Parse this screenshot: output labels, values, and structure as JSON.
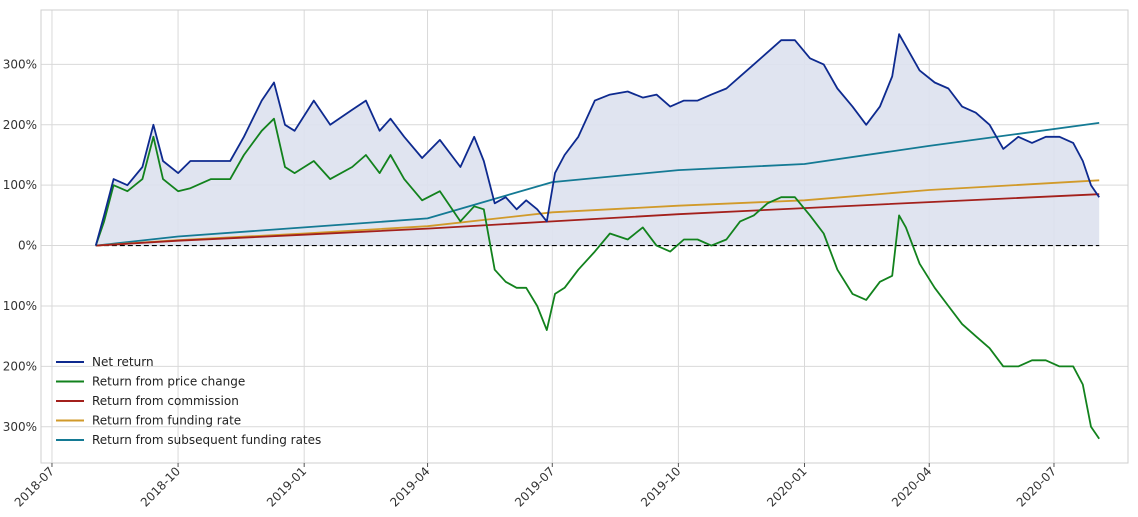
{
  "chart_data": {
    "type": "line",
    "title": "",
    "xlabel": "",
    "ylabel": "",
    "x_ticks": [
      "2018-07",
      "2018-10",
      "2019-01",
      "2019-04",
      "2019-07",
      "2019-10",
      "2020-01",
      "2020-04",
      "2020-07"
    ],
    "y_ticks": [
      "300%",
      "200%",
      "100%",
      "0%",
      "100%",
      "200%",
      "300%"
    ],
    "y_tick_values": [
      300,
      200,
      100,
      0,
      -100,
      -200,
      -300
    ],
    "xlim": [
      "2018-06-23",
      "2020-08-24"
    ],
    "ylim": [
      -360,
      390
    ],
    "grid": true,
    "legend_position": "lower-left",
    "zero_line": {
      "value": 0,
      "style": "dashed",
      "color": "#000000"
    },
    "fill_between": {
      "series": "Net return",
      "color": "#dde1ee"
    },
    "series": [
      {
        "name": "Net return",
        "color": "#0e2a8f",
        "x": [
          "2018-08-02",
          "2018-08-08",
          "2018-08-15",
          "2018-08-25",
          "2018-09-05",
          "2018-09-13",
          "2018-09-20",
          "2018-10-01",
          "2018-10-10",
          "2018-10-25",
          "2018-11-08",
          "2018-11-18",
          "2018-12-01",
          "2018-12-10",
          "2018-12-18",
          "2018-12-25",
          "2019-01-08",
          "2019-01-20",
          "2019-02-05",
          "2019-02-15",
          "2019-02-25",
          "2019-03-05",
          "2019-03-15",
          "2019-03-28",
          "2019-04-10",
          "2019-04-25",
          "2019-05-05",
          "2019-05-12",
          "2019-05-20",
          "2019-05-28",
          "2019-06-05",
          "2019-06-12",
          "2019-06-20",
          "2019-06-27",
          "2019-07-03",
          "2019-07-10",
          "2019-07-20",
          "2019-08-01",
          "2019-08-12",
          "2019-08-25",
          "2019-09-05",
          "2019-09-15",
          "2019-09-25",
          "2019-10-05",
          "2019-10-15",
          "2019-10-25",
          "2019-11-05",
          "2019-11-15",
          "2019-11-25",
          "2019-12-05",
          "2019-12-15",
          "2019-12-25",
          "2020-01-05",
          "2020-01-15",
          "2020-01-25",
          "2020-02-05",
          "2020-02-15",
          "2020-02-25",
          "2020-03-05",
          "2020-03-10",
          "2020-03-15",
          "2020-03-25",
          "2020-04-05",
          "2020-04-15",
          "2020-04-25",
          "2020-05-05",
          "2020-05-15",
          "2020-05-25",
          "2020-06-05",
          "2020-06-15",
          "2020-06-25",
          "2020-07-05",
          "2020-07-15",
          "2020-07-22",
          "2020-07-28",
          "2020-08-03"
        ],
        "y": [
          0,
          50,
          110,
          100,
          130,
          200,
          140,
          120,
          140,
          140,
          140,
          180,
          240,
          270,
          200,
          190,
          240,
          200,
          225,
          240,
          190,
          210,
          180,
          145,
          175,
          130,
          180,
          140,
          70,
          80,
          60,
          75,
          60,
          40,
          120,
          150,
          180,
          240,
          250,
          255,
          245,
          250,
          230,
          240,
          240,
          250,
          260,
          280,
          300,
          320,
          340,
          340,
          310,
          300,
          260,
          230,
          200,
          230,
          280,
          350,
          330,
          290,
          270,
          260,
          230,
          220,
          200,
          160,
          180,
          170,
          180,
          180,
          170,
          140,
          100,
          80
        ]
      },
      {
        "name": "Return from price change",
        "color": "#12821d",
        "x": [
          "2018-08-02",
          "2018-08-08",
          "2018-08-15",
          "2018-08-25",
          "2018-09-05",
          "2018-09-13",
          "2018-09-20",
          "2018-10-01",
          "2018-10-10",
          "2018-10-25",
          "2018-11-08",
          "2018-11-18",
          "2018-12-01",
          "2018-12-10",
          "2018-12-18",
          "2018-12-25",
          "2019-01-08",
          "2019-01-20",
          "2019-02-05",
          "2019-02-15",
          "2019-02-25",
          "2019-03-05",
          "2019-03-15",
          "2019-03-28",
          "2019-04-10",
          "2019-04-25",
          "2019-05-05",
          "2019-05-12",
          "2019-05-20",
          "2019-05-28",
          "2019-06-05",
          "2019-06-12",
          "2019-06-20",
          "2019-06-27",
          "2019-07-03",
          "2019-07-10",
          "2019-07-20",
          "2019-08-01",
          "2019-08-12",
          "2019-08-25",
          "2019-09-05",
          "2019-09-15",
          "2019-09-25",
          "2019-10-05",
          "2019-10-15",
          "2019-10-25",
          "2019-11-05",
          "2019-11-15",
          "2019-11-25",
          "2019-12-05",
          "2019-12-15",
          "2019-12-25",
          "2020-01-05",
          "2020-01-15",
          "2020-01-25",
          "2020-02-05",
          "2020-02-15",
          "2020-02-25",
          "2020-03-05",
          "2020-03-10",
          "2020-03-15",
          "2020-03-25",
          "2020-04-05",
          "2020-04-15",
          "2020-04-25",
          "2020-05-05",
          "2020-05-15",
          "2020-05-25",
          "2020-06-05",
          "2020-06-15",
          "2020-06-25",
          "2020-07-05",
          "2020-07-15",
          "2020-07-22",
          "2020-07-28",
          "2020-08-03"
        ],
        "y": [
          0,
          40,
          100,
          90,
          110,
          180,
          110,
          90,
          95,
          110,
          110,
          150,
          190,
          210,
          130,
          120,
          140,
          110,
          130,
          150,
          120,
          150,
          110,
          75,
          90,
          40,
          65,
          60,
          -40,
          -60,
          -70,
          -70,
          -100,
          -140,
          -80,
          -70,
          -40,
          -10,
          20,
          10,
          30,
          0,
          -10,
          10,
          10,
          0,
          10,
          40,
          50,
          70,
          80,
          80,
          50,
          20,
          -40,
          -80,
          -90,
          -60,
          -50,
          50,
          30,
          -30,
          -70,
          -100,
          -130,
          -150,
          -170,
          -200,
          -200,
          -190,
          -190,
          -200,
          -200,
          -230,
          -300,
          -320
        ]
      },
      {
        "name": "Return from commission",
        "color": "#a3201c",
        "x": [
          "2018-08-02",
          "2018-10-01",
          "2019-01-01",
          "2019-04-01",
          "2019-07-01",
          "2019-10-01",
          "2020-01-01",
          "2020-04-01",
          "2020-08-03"
        ],
        "y": [
          0,
          8,
          18,
          28,
          40,
          52,
          62,
          72,
          85
        ]
      },
      {
        "name": "Return from funding rate",
        "color": "#d19a2a",
        "x": [
          "2018-08-02",
          "2018-10-01",
          "2019-01-01",
          "2019-04-01",
          "2019-07-01",
          "2019-10-01",
          "2020-01-01",
          "2020-04-01",
          "2020-08-03"
        ],
        "y": [
          0,
          9,
          20,
          32,
          55,
          66,
          75,
          92,
          108
        ]
      },
      {
        "name": "Return from subsequent funding rates",
        "color": "#147a94",
        "x": [
          "2018-08-02",
          "2018-10-01",
          "2019-01-01",
          "2019-04-01",
          "2019-07-01",
          "2019-10-01",
          "2020-01-01",
          "2020-04-01",
          "2020-08-03"
        ],
        "y": [
          0,
          15,
          30,
          45,
          105,
          125,
          135,
          165,
          203
        ]
      }
    ]
  }
}
